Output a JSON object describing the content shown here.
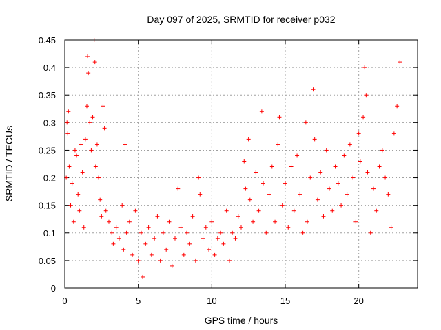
{
  "chart_data": {
    "type": "scatter",
    "title": "Day 097 of 2025, SRMTID for receiver p032",
    "xlabel": "GPS time / hours",
    "ylabel": "SRMTID / TECUs",
    "xlim": [
      0,
      24
    ],
    "ylim": [
      0,
      0.45
    ],
    "xticks": [
      0,
      5,
      10,
      15,
      20
    ],
    "xtick_labels": [
      "0",
      "5",
      "10",
      "15",
      "20"
    ],
    "yticks": [
      0,
      0.05,
      0.1,
      0.15,
      0.2,
      0.25,
      0.3,
      0.35,
      0.4,
      0.45
    ],
    "ytick_labels": [
      "0",
      "0.05",
      "0.1",
      "0.15",
      "0.2",
      "0.25",
      "0.3",
      "0.35",
      "0.4",
      "0.45"
    ],
    "marker": "+",
    "color": "#ff0000",
    "grid": true,
    "series": [
      {
        "name": "SRMTID",
        "points": [
          [
            0.1,
            0.2
          ],
          [
            0.15,
            0.3
          ],
          [
            0.2,
            0.28
          ],
          [
            0.25,
            0.32
          ],
          [
            0.3,
            0.22
          ],
          [
            0.4,
            0.15
          ],
          [
            0.5,
            0.19
          ],
          [
            0.6,
            0.12
          ],
          [
            0.7,
            0.25
          ],
          [
            0.8,
            0.24
          ],
          [
            0.9,
            0.17
          ],
          [
            1.0,
            0.14
          ],
          [
            1.1,
            0.26
          ],
          [
            1.2,
            0.21
          ],
          [
            1.3,
            0.11
          ],
          [
            1.4,
            0.27
          ],
          [
            1.5,
            0.33
          ],
          [
            1.55,
            0.42
          ],
          [
            1.6,
            0.39
          ],
          [
            1.7,
            0.3
          ],
          [
            1.8,
            0.25
          ],
          [
            1.9,
            0.31
          ],
          [
            2.0,
            0.45
          ],
          [
            2.05,
            0.41
          ],
          [
            2.1,
            0.22
          ],
          [
            2.2,
            0.26
          ],
          [
            2.3,
            0.2
          ],
          [
            2.4,
            0.16
          ],
          [
            2.5,
            0.13
          ],
          [
            2.6,
            0.33
          ],
          [
            2.7,
            0.29
          ],
          [
            2.8,
            0.14
          ],
          [
            3.0,
            0.12
          ],
          [
            3.2,
            0.1
          ],
          [
            3.3,
            0.08
          ],
          [
            3.5,
            0.11
          ],
          [
            3.7,
            0.09
          ],
          [
            3.9,
            0.15
          ],
          [
            4.0,
            0.07
          ],
          [
            4.1,
            0.26
          ],
          [
            4.2,
            0.1
          ],
          [
            4.4,
            0.12
          ],
          [
            4.6,
            0.06
          ],
          [
            4.8,
            0.14
          ],
          [
            5.0,
            0.05
          ],
          [
            5.2,
            0.1
          ],
          [
            5.3,
            0.02
          ],
          [
            5.5,
            0.08
          ],
          [
            5.7,
            0.11
          ],
          [
            5.9,
            0.06
          ],
          [
            6.1,
            0.09
          ],
          [
            6.3,
            0.13
          ],
          [
            6.5,
            0.05
          ],
          [
            6.7,
            0.1
          ],
          [
            6.9,
            0.07
          ],
          [
            7.1,
            0.12
          ],
          [
            7.3,
            0.04
          ],
          [
            7.5,
            0.09
          ],
          [
            7.7,
            0.18
          ],
          [
            7.9,
            0.11
          ],
          [
            8.1,
            0.06
          ],
          [
            8.3,
            0.1
          ],
          [
            8.5,
            0.08
          ],
          [
            8.7,
            0.13
          ],
          [
            8.9,
            0.05
          ],
          [
            9.1,
            0.2
          ],
          [
            9.2,
            0.17
          ],
          [
            9.4,
            0.09
          ],
          [
            9.6,
            0.11
          ],
          [
            9.8,
            0.07
          ],
          [
            10.0,
            0.12
          ],
          [
            10.2,
            0.06
          ],
          [
            10.4,
            0.09
          ],
          [
            10.6,
            0.1
          ],
          [
            10.8,
            0.08
          ],
          [
            11.0,
            0.14
          ],
          [
            11.2,
            0.05
          ],
          [
            11.4,
            0.1
          ],
          [
            11.6,
            0.09
          ],
          [
            11.8,
            0.13
          ],
          [
            12.0,
            0.11
          ],
          [
            12.2,
            0.23
          ],
          [
            12.3,
            0.18
          ],
          [
            12.5,
            0.27
          ],
          [
            12.6,
            0.16
          ],
          [
            12.8,
            0.12
          ],
          [
            13.0,
            0.21
          ],
          [
            13.2,
            0.14
          ],
          [
            13.4,
            0.32
          ],
          [
            13.5,
            0.19
          ],
          [
            13.7,
            0.1
          ],
          [
            13.9,
            0.17
          ],
          [
            14.1,
            0.22
          ],
          [
            14.3,
            0.12
          ],
          [
            14.5,
            0.26
          ],
          [
            14.6,
            0.31
          ],
          [
            14.8,
            0.15
          ],
          [
            15.0,
            0.19
          ],
          [
            15.2,
            0.11
          ],
          [
            15.4,
            0.22
          ],
          [
            15.6,
            0.14
          ],
          [
            15.8,
            0.24
          ],
          [
            16.0,
            0.17
          ],
          [
            16.2,
            0.1
          ],
          [
            16.4,
            0.3
          ],
          [
            16.5,
            0.12
          ],
          [
            16.7,
            0.2
          ],
          [
            16.9,
            0.36
          ],
          [
            17.0,
            0.27
          ],
          [
            17.2,
            0.16
          ],
          [
            17.4,
            0.21
          ],
          [
            17.6,
            0.13
          ],
          [
            17.8,
            0.25
          ],
          [
            18.0,
            0.18
          ],
          [
            18.2,
            0.14
          ],
          [
            18.4,
            0.22
          ],
          [
            18.6,
            0.19
          ],
          [
            18.8,
            0.15
          ],
          [
            19.0,
            0.24
          ],
          [
            19.2,
            0.17
          ],
          [
            19.4,
            0.26
          ],
          [
            19.6,
            0.2
          ],
          [
            19.8,
            0.12
          ],
          [
            20.0,
            0.28
          ],
          [
            20.1,
            0.23
          ],
          [
            20.3,
            0.31
          ],
          [
            20.4,
            0.4
          ],
          [
            20.5,
            0.35
          ],
          [
            20.6,
            0.21
          ],
          [
            20.8,
            0.1
          ],
          [
            21.0,
            0.18
          ],
          [
            21.2,
            0.14
          ],
          [
            21.4,
            0.22
          ],
          [
            21.6,
            0.25
          ],
          [
            21.8,
            0.2
          ],
          [
            22.0,
            0.17
          ],
          [
            22.2,
            0.11
          ],
          [
            22.4,
            0.28
          ],
          [
            22.6,
            0.33
          ],
          [
            22.8,
            0.41
          ]
        ]
      }
    ]
  }
}
